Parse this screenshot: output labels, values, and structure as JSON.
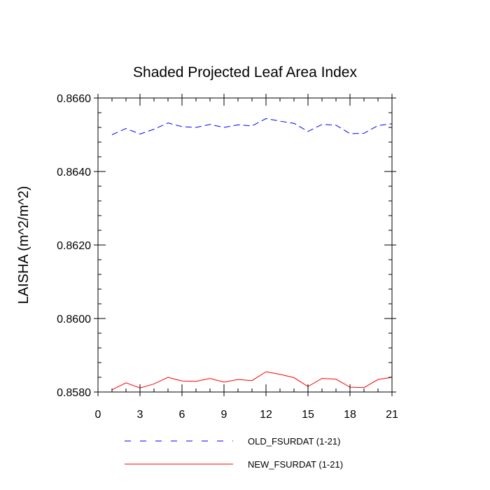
{
  "chart_data": {
    "type": "line",
    "title": "Shaded Projected Leaf Area Index",
    "xlabel": "",
    "ylabel": "LAISHA  (m^2/m^2)",
    "xlim": [
      0,
      21
    ],
    "ylim": [
      0.858,
      0.866
    ],
    "xticks": [
      0,
      3,
      6,
      9,
      12,
      15,
      18,
      21
    ],
    "xtick_labels": [
      "0",
      "3",
      "6",
      "9",
      "12",
      "15",
      "18",
      "21"
    ],
    "yticks": [
      0.858,
      0.86,
      0.862,
      0.864,
      0.866
    ],
    "ytick_labels": [
      "0.8580",
      "0.8600",
      "0.8620",
      "0.8640",
      "0.8660"
    ],
    "grid": false,
    "legend_position": "bottom",
    "x": [
      1,
      2,
      3,
      4,
      5,
      6,
      7,
      8,
      9,
      10,
      11,
      12,
      13,
      14,
      15,
      16,
      17,
      18,
      19,
      20,
      21
    ],
    "series": [
      {
        "name": "OLD_FSURDAT (1-21)",
        "color": "#0000ff",
        "style": "dashed",
        "values": [
          0.865,
          0.86517,
          0.86502,
          0.86515,
          0.86532,
          0.86522,
          0.8652,
          0.86528,
          0.8652,
          0.86527,
          0.86524,
          0.86544,
          0.86537,
          0.86531,
          0.86509,
          0.86528,
          0.86526,
          0.86503,
          0.86504,
          0.86525,
          0.8653
        ]
      },
      {
        "name": "NEW_FSURDAT (1-21)",
        "color": "#ff0000",
        "style": "solid",
        "values": [
          0.85806,
          0.85825,
          0.85811,
          0.85822,
          0.8584,
          0.8583,
          0.85829,
          0.85837,
          0.85827,
          0.85834,
          0.85831,
          0.85855,
          0.85848,
          0.85839,
          0.85815,
          0.85837,
          0.85835,
          0.85813,
          0.85812,
          0.85834,
          0.8584
        ]
      }
    ]
  }
}
